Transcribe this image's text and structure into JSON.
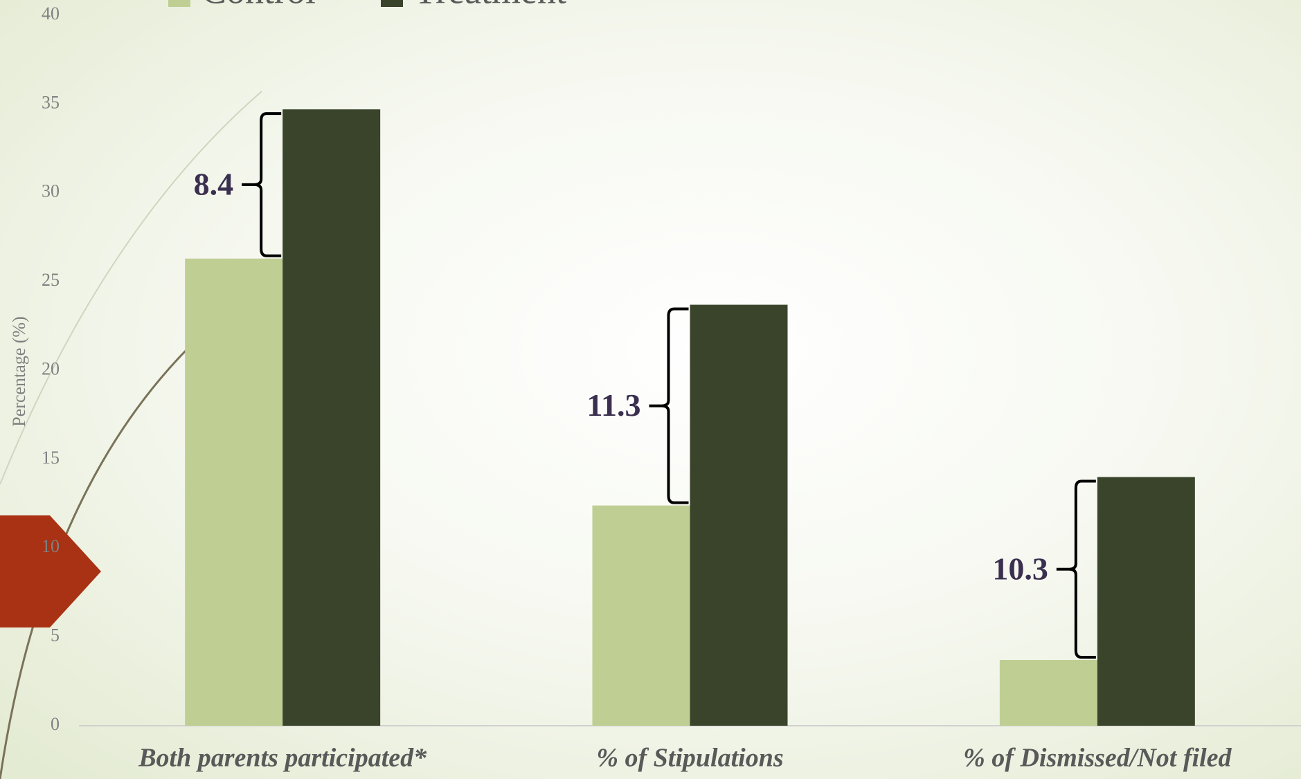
{
  "chart_data": {
    "type": "bar",
    "y_label": "Percentage (%)",
    "categories": [
      "Both parents participated*",
      "% of Stipulations",
      "% of Dismissed/Not filed"
    ],
    "series": [
      {
        "name": "Control",
        "color": "#bfcf93",
        "values": [
          26.3,
          12.4,
          3.7
        ]
      },
      {
        "name": "Treatment",
        "color": "#3a442b",
        "values": [
          34.7,
          23.7,
          14.0
        ]
      }
    ],
    "differences": [
      8.4,
      11.3,
      10.3
    ],
    "ylim": [
      0,
      40
    ],
    "yticks": [
      0,
      5,
      10,
      15,
      20,
      25,
      30,
      35,
      40
    ]
  }
}
